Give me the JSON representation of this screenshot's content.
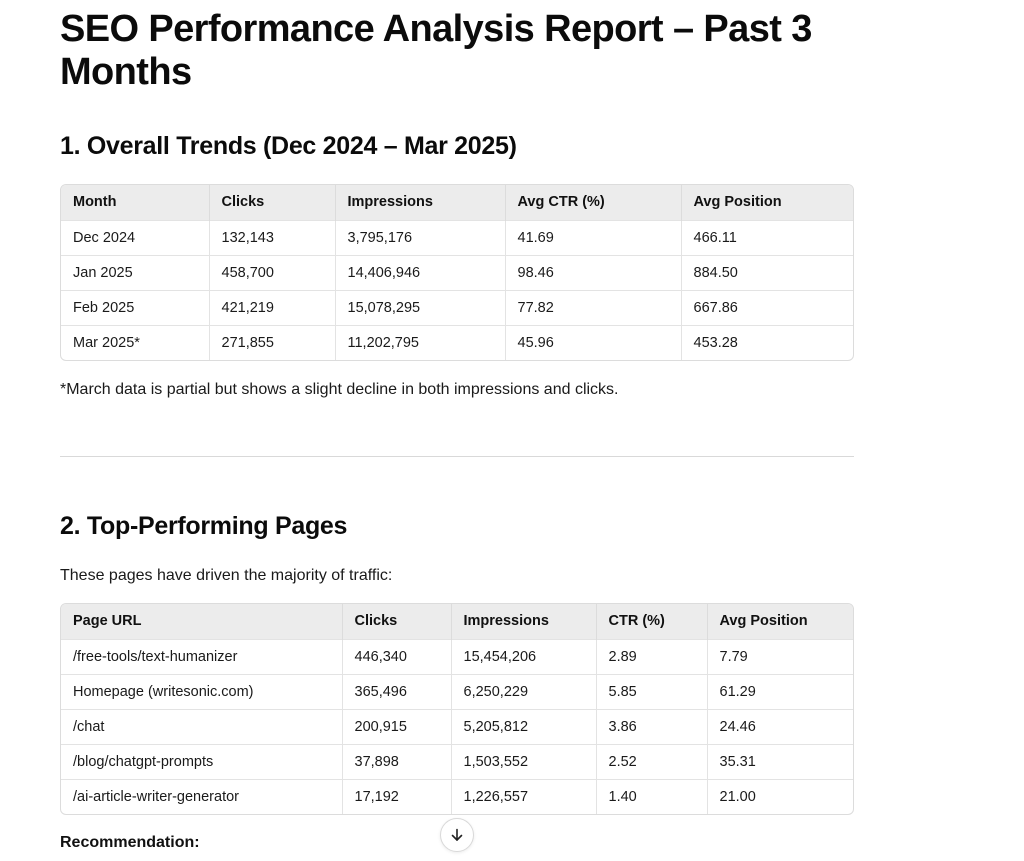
{
  "title": "SEO Performance Analysis Report – Past 3 Months",
  "section1": {
    "heading": "1. Overall Trends (Dec 2024 – Mar 2025)",
    "columns": [
      "Month",
      "Clicks",
      "Impressions",
      "Avg CTR (%)",
      "Avg Position"
    ],
    "rows": [
      [
        "Dec 2024",
        "132,143",
        "3,795,176",
        "41.69",
        "466.11"
      ],
      [
        "Jan 2025",
        "458,700",
        "14,406,946",
        "98.46",
        "884.50"
      ],
      [
        "Feb 2025",
        "421,219",
        "15,078,295",
        "77.82",
        "667.86"
      ],
      [
        "Mar 2025*",
        "271,855",
        "11,202,795",
        "45.96",
        "453.28"
      ]
    ],
    "note": "*March data is partial but shows a slight decline in both impressions and clicks."
  },
  "section2": {
    "heading": "2. Top-Performing Pages",
    "intro": "These pages have driven the majority of traffic:",
    "columns": [
      "Page URL",
      "Clicks",
      "Impressions",
      "CTR (%)",
      "Avg Position"
    ],
    "rows": [
      [
        "/free-tools/text-humanizer",
        "446,340",
        "15,454,206",
        "2.89",
        "7.79"
      ],
      [
        "Homepage (writesonic.com)",
        "365,496",
        "6,250,229",
        "5.85",
        "61.29"
      ],
      [
        "/chat",
        "200,915",
        "5,205,812",
        "3.86",
        "24.46"
      ],
      [
        "/blog/chatgpt-prompts",
        "37,898",
        "1,503,552",
        "2.52",
        "35.31"
      ],
      [
        "/ai-article-writer-generator",
        "17,192",
        "1,226,557",
        "1.40",
        "21.00"
      ]
    ],
    "recommendation_label": "Recommendation:"
  },
  "scroll_button": {
    "icon": "arrow-down-icon"
  }
}
